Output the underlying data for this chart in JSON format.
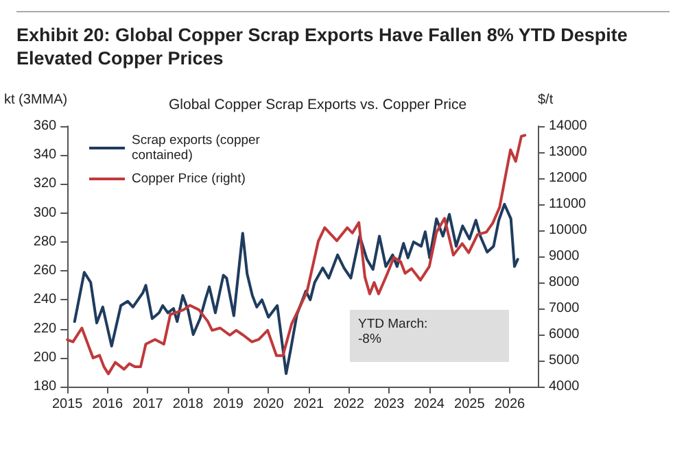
{
  "chart_data": {
    "type": "line",
    "title": "Exhibit 20: Global Copper Scrap Exports Have Fallen 8% YTD Despite Elevated Copper Prices",
    "subtitle": "Global Copper Scrap Exports vs. Copper Price",
    "ylabel": "kt (3MMA)",
    "y2label": "$/t",
    "xlim": [
      2015,
      2026.7
    ],
    "xticks": [
      2015,
      2016,
      2017,
      2018,
      2019,
      2020,
      2021,
      2022,
      2023,
      2024,
      2025,
      2026
    ],
    "ylim": [
      180,
      360
    ],
    "yticks": [
      180,
      200,
      220,
      240,
      260,
      280,
      300,
      320,
      340,
      360
    ],
    "y2lim": [
      4000,
      14000
    ],
    "y2ticks": [
      4000,
      5000,
      6000,
      7000,
      8000,
      9000,
      10000,
      11000,
      12000,
      13000,
      14000
    ],
    "grid": false,
    "legend": "top left",
    "marker": "none",
    "line_style": "solid",
    "annotations": [
      "YTD March:\n-8%"
    ],
    "series": [
      {
        "name": "Scrap exports (copper contained)",
        "color": "#1f3c5e",
        "x": [
          2015.18,
          2015.42,
          2015.58,
          2015.73,
          2015.88,
          2016.1,
          2016.33,
          2016.5,
          2016.63,
          2016.88,
          2016.95,
          2017.11,
          2017.28,
          2017.37,
          2017.5,
          2017.64,
          2017.73,
          2017.87,
          2018,
          2018.13,
          2018.3,
          2018.44,
          2018.53,
          2018.68,
          2018.88,
          2018.96,
          2019.14,
          2019.36,
          2019.47,
          2019.6,
          2019.71,
          2019.84,
          2020,
          2020.22,
          2020.44,
          2020.55,
          2020.71,
          2020.93,
          2021.04,
          2021.15,
          2021.35,
          2021.5,
          2021.72,
          2021.88,
          2022.05,
          2022.27,
          2022.45,
          2022.6,
          2022.76,
          2022.92,
          2023.09,
          2023.2,
          2023.36,
          2023.47,
          2023.61,
          2023.8,
          2023.9,
          2024.01,
          2024.18,
          2024.34,
          2024.5,
          2024.67,
          2024.83,
          2025,
          2025.16,
          2025.27,
          2025.44,
          2025.6,
          2025.73,
          2025.87,
          2026.03,
          2026.12,
          2026.2
        ],
        "values": [
          225,
          259,
          252,
          224,
          235,
          208,
          236,
          239,
          235,
          245,
          250,
          227,
          231,
          236,
          231,
          234,
          225,
          243,
          233,
          216,
          227,
          241,
          249,
          231,
          257,
          255,
          229,
          286,
          258,
          243,
          235,
          240,
          228,
          236,
          189,
          205,
          230,
          246,
          240,
          252,
          262,
          255,
          271,
          262,
          255,
          284,
          268,
          261,
          284,
          263,
          271,
          263,
          279,
          269,
          280,
          277,
          287,
          269,
          296,
          284,
          299,
          277,
          291,
          282,
          295,
          284,
          273,
          277,
          295,
          306,
          296,
          263,
          268
        ]
      },
      {
        "name": "Copper Price (right)",
        "color": "#c0393b",
        "axis": "y2",
        "x": [
          2015,
          2015.14,
          2015.36,
          2015.53,
          2015.64,
          2015.8,
          2015.91,
          2016.02,
          2016.19,
          2016.41,
          2016.54,
          2016.68,
          2016.82,
          2016.95,
          2017.18,
          2017.4,
          2017.56,
          2017.73,
          2017.89,
          2018.05,
          2018.27,
          2018.49,
          2018.6,
          2018.8,
          2019.04,
          2019.2,
          2019.37,
          2019.59,
          2019.76,
          2019.98,
          2020.2,
          2020.36,
          2020.58,
          2020.8,
          2020.96,
          2021.24,
          2021.4,
          2021.7,
          2021.96,
          2022.09,
          2022.25,
          2022.4,
          2022.52,
          2022.63,
          2022.74,
          2022.96,
          2023.12,
          2023.29,
          2023.4,
          2023.56,
          2023.78,
          2024,
          2024.18,
          2024.38,
          2024.6,
          2024.82,
          2024.98,
          2025.2,
          2025.42,
          2025.58,
          2025.75,
          2025.91,
          2026.02,
          2026.15,
          2026.29,
          2026.38
        ],
        "values": [
          5800,
          5720,
          6250,
          5550,
          5100,
          5200,
          4760,
          4490,
          4930,
          4670,
          4880,
          4760,
          4760,
          5630,
          5810,
          5630,
          6770,
          6860,
          6950,
          7120,
          6950,
          6510,
          6160,
          6250,
          5980,
          6160,
          5980,
          5720,
          5810,
          6160,
          5190,
          5190,
          6420,
          7120,
          7650,
          9580,
          10100,
          9600,
          10100,
          9900,
          10300,
          8200,
          7560,
          8000,
          7560,
          8350,
          8960,
          8790,
          8350,
          8530,
          8090,
          8610,
          9930,
          10460,
          9050,
          9490,
          9140,
          9840,
          9930,
          10280,
          10890,
          12200,
          13090,
          12650,
          13610,
          13650
        ]
      }
    ]
  }
}
